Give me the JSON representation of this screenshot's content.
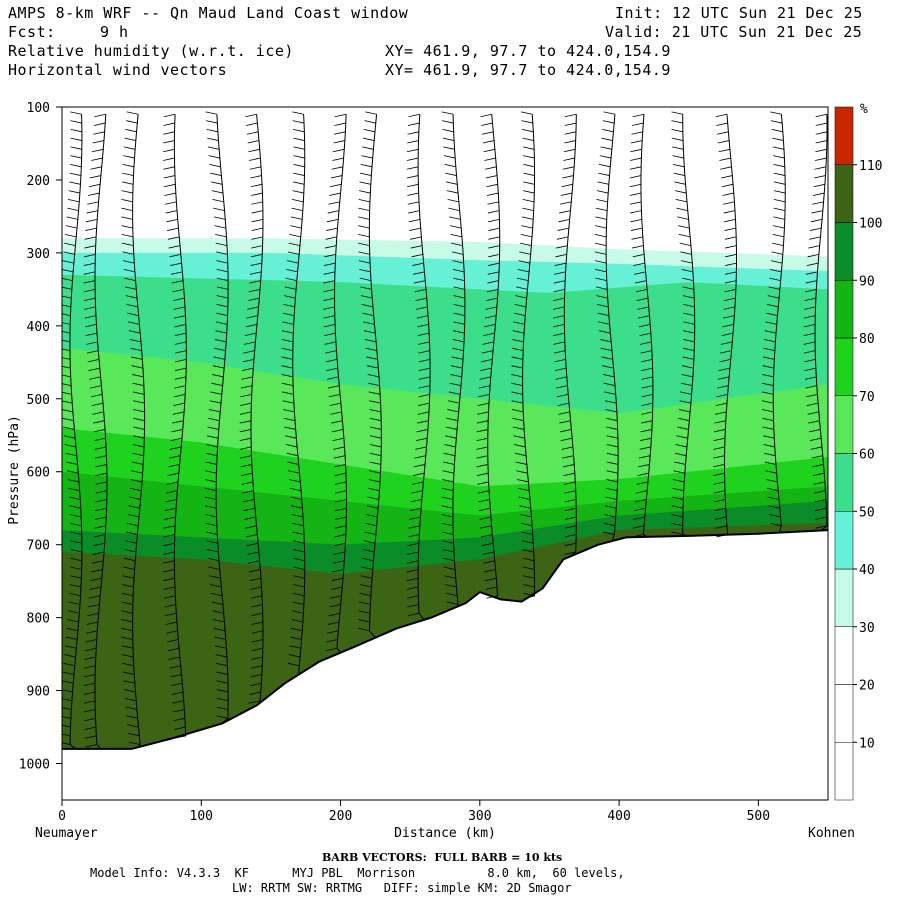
{
  "header": {
    "title": "AMPS 8-km WRF -- Qn Maud Land Coast window",
    "init": "Init: 12 UTC Sun 21 Dec 25",
    "fcst_label": "Fcst:",
    "fcst_value": "9 h",
    "valid": "Valid: 21 UTC Sun 21 Dec 25",
    "field1": "Relative humidity (w.r.t. ice)",
    "field2": "Horizontal wind vectors",
    "xy1": "XY= 461.9, 97.7 to 424.0,154.9",
    "xy2": "XY= 461.9, 97.7 to 424.0,154.9"
  },
  "footer": {
    "barb_note": "BARB VECTORS:  FULL BARB = 10 kts",
    "model_line1": "Model Info: V4.3.3  KF      MYJ PBL  Morrison          8.0 km,  60 levels,",
    "model_line2": "LW: RRTM SW: RRTMG   DIFF: simple KM: 2D Smagor"
  },
  "chart_data": {
    "type": "cross-section",
    "title": "Relative humidity (w.r.t. ice) with horizontal wind vectors",
    "xlabel": "Distance (km)",
    "ylabel": "Pressure (hPa)",
    "xlim": [
      0,
      550
    ],
    "ylim": [
      1050,
      100
    ],
    "x_ticks": [
      0,
      100,
      200,
      300,
      400,
      500
    ],
    "y_ticks": [
      100,
      200,
      300,
      400,
      500,
      600,
      700,
      800,
      900,
      1000
    ],
    "x_start_label": "Neumayer",
    "x_end_label": "Kohnen",
    "colorbar": {
      "unit": "%",
      "levels": [
        10,
        20,
        30,
        40,
        50,
        60,
        70,
        80,
        90,
        100,
        110
      ],
      "colors": [
        "#ffffff",
        "#ffffff",
        "#ffffff",
        "#c8fae8",
        "#66f0d6",
        "#3cde8c",
        "#5ae85a",
        "#1ed21e",
        "#14b414",
        "#0a8c28",
        "#3c6414",
        "#c82800"
      ]
    },
    "terrain": [
      {
        "x": 0,
        "p": 980
      },
      {
        "x": 50,
        "p": 980
      },
      {
        "x": 80,
        "p": 965
      },
      {
        "x": 115,
        "p": 945
      },
      {
        "x": 140,
        "p": 920
      },
      {
        "x": 160,
        "p": 890
      },
      {
        "x": 185,
        "p": 860
      },
      {
        "x": 210,
        "p": 840
      },
      {
        "x": 240,
        "p": 815
      },
      {
        "x": 265,
        "p": 800
      },
      {
        "x": 290,
        "p": 780
      },
      {
        "x": 300,
        "p": 765
      },
      {
        "x": 315,
        "p": 775
      },
      {
        "x": 330,
        "p": 778
      },
      {
        "x": 345,
        "p": 760
      },
      {
        "x": 360,
        "p": 720
      },
      {
        "x": 385,
        "p": 700
      },
      {
        "x": 405,
        "p": 690
      },
      {
        "x": 450,
        "p": 688
      },
      {
        "x": 500,
        "p": 685
      },
      {
        "x": 550,
        "p": 680
      }
    ],
    "rh_bands": [
      {
        "top": [
          [
            0,
            280
          ],
          [
            150,
            280
          ],
          [
            300,
            285
          ],
          [
            400,
            295
          ],
          [
            550,
            305
          ]
        ],
        "value": 35
      },
      {
        "top": [
          [
            0,
            300
          ],
          [
            150,
            300
          ],
          [
            300,
            310
          ],
          [
            400,
            315
          ],
          [
            550,
            325
          ]
        ],
        "value": 45
      },
      {
        "top": [
          [
            0,
            330
          ],
          [
            200,
            340
          ],
          [
            350,
            355
          ],
          [
            450,
            340
          ],
          [
            550,
            350
          ]
        ],
        "value": 50
      },
      {
        "top": [
          [
            0,
            380
          ],
          [
            100,
            400
          ],
          [
            200,
            390
          ],
          [
            300,
            385
          ],
          [
            450,
            380
          ],
          [
            550,
            370
          ]
        ],
        "value": 55
      },
      {
        "top": [
          [
            0,
            430
          ],
          [
            100,
            450
          ],
          [
            200,
            480
          ],
          [
            300,
            500
          ],
          [
            400,
            520
          ],
          [
            550,
            480
          ]
        ],
        "value": 60
      },
      {
        "top": [
          [
            0,
            540
          ],
          [
            100,
            560
          ],
          [
            200,
            590
          ],
          [
            300,
            620
          ],
          [
            400,
            610
          ],
          [
            550,
            580
          ]
        ],
        "value": 70
      },
      {
        "top": [
          [
            0,
            600
          ],
          [
            100,
            620
          ],
          [
            200,
            640
          ],
          [
            300,
            660
          ],
          [
            400,
            640
          ],
          [
            550,
            620
          ]
        ],
        "value": 80
      },
      {
        "top": [
          [
            0,
            680
          ],
          [
            100,
            690
          ],
          [
            200,
            700
          ],
          [
            300,
            690
          ],
          [
            400,
            660
          ],
          [
            550,
            640
          ]
        ],
        "value": 90
      },
      {
        "top": [
          [
            0,
            710
          ],
          [
            100,
            720
          ],
          [
            200,
            740
          ],
          [
            300,
            720
          ],
          [
            400,
            680
          ],
          [
            550,
            670
          ]
        ],
        "value": 100
      }
    ],
    "wind_profile_x": [
      10,
      28,
      55,
      85,
      115,
      140,
      170,
      200,
      225,
      260,
      285,
      310,
      335,
      365,
      395,
      420,
      450,
      480,
      515,
      545
    ]
  }
}
